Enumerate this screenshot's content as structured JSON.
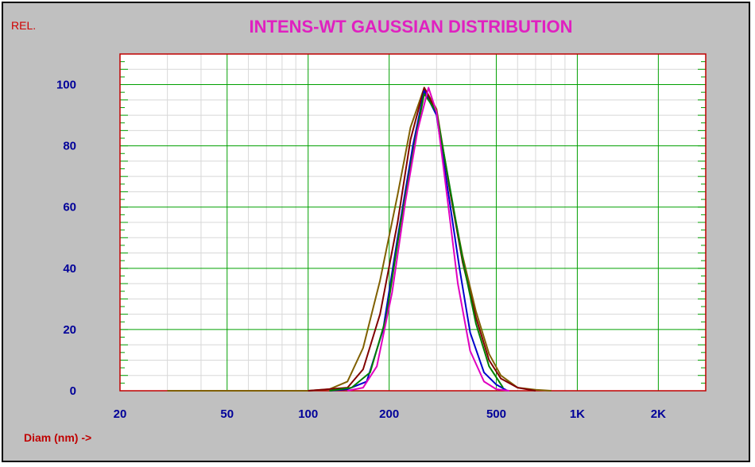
{
  "chart_data": {
    "type": "line",
    "title": "INTENS-WT GAUSSIAN DISTRIBUTION",
    "ylabel": "REL.",
    "xlabel": "Diam (nm) ->",
    "xscale": "log",
    "xlim": [
      20,
      3000
    ],
    "ylim": [
      0,
      110
    ],
    "xticks": [
      {
        "value": 20,
        "label": "20"
      },
      {
        "value": 50,
        "label": "50"
      },
      {
        "value": 100,
        "label": "100"
      },
      {
        "value": 200,
        "label": "200"
      },
      {
        "value": 500,
        "label": "500"
      },
      {
        "value": 1000,
        "label": "1K"
      },
      {
        "value": 2000,
        "label": "2K"
      }
    ],
    "yticks": [
      {
        "value": 0,
        "label": "0"
      },
      {
        "value": 20,
        "label": "20"
      },
      {
        "value": 40,
        "label": "40"
      },
      {
        "value": 60,
        "label": "60"
      },
      {
        "value": 80,
        "label": "80"
      },
      {
        "value": 100,
        "label": "100"
      }
    ],
    "grid": true,
    "series": [
      {
        "color": "#806000",
        "x": [
          30,
          100,
          120,
          140,
          160,
          185,
          215,
          240,
          270,
          300,
          340,
          375,
          420,
          470,
          520,
          600,
          700,
          800
        ],
        "y": [
          0,
          0,
          0.5,
          3,
          14,
          36,
          64,
          86,
          99,
          92,
          63,
          44,
          26,
          12,
          5,
          1,
          0.3,
          0
        ]
      },
      {
        "color": "#800000",
        "x": [
          100,
          140,
          160,
          185,
          215,
          240,
          270,
          300,
          340,
          375,
          420,
          470,
          520,
          600,
          700
        ],
        "y": [
          0,
          1,
          7,
          25,
          55,
          82,
          99,
          91,
          63,
          42,
          24,
          10,
          4,
          1,
          0
        ]
      },
      {
        "color": "#0000cc",
        "x": [
          120,
          140,
          165,
          190,
          215,
          245,
          270,
          300,
          335,
          365,
          400,
          450,
          500,
          550
        ],
        "y": [
          0,
          0.5,
          3,
          20,
          50,
          80,
          98,
          90,
          62,
          40,
          19,
          6,
          2,
          0
        ]
      },
      {
        "color": "#008000",
        "x": [
          120,
          145,
          170,
          195,
          220,
          250,
          270,
          300,
          340,
          375,
          420,
          470,
          530
        ],
        "y": [
          0,
          1,
          6,
          24,
          54,
          82,
          97,
          91,
          64,
          43,
          22,
          8,
          1
        ]
      },
      {
        "color": "#e000c0",
        "x": [
          140,
          160,
          180,
          205,
          230,
          255,
          280,
          300,
          330,
          360,
          400,
          450,
          500,
          560
        ],
        "y": [
          0,
          1,
          8,
          32,
          62,
          85,
          99,
          91,
          62,
          35,
          13,
          3,
          0.5,
          0
        ]
      }
    ]
  }
}
